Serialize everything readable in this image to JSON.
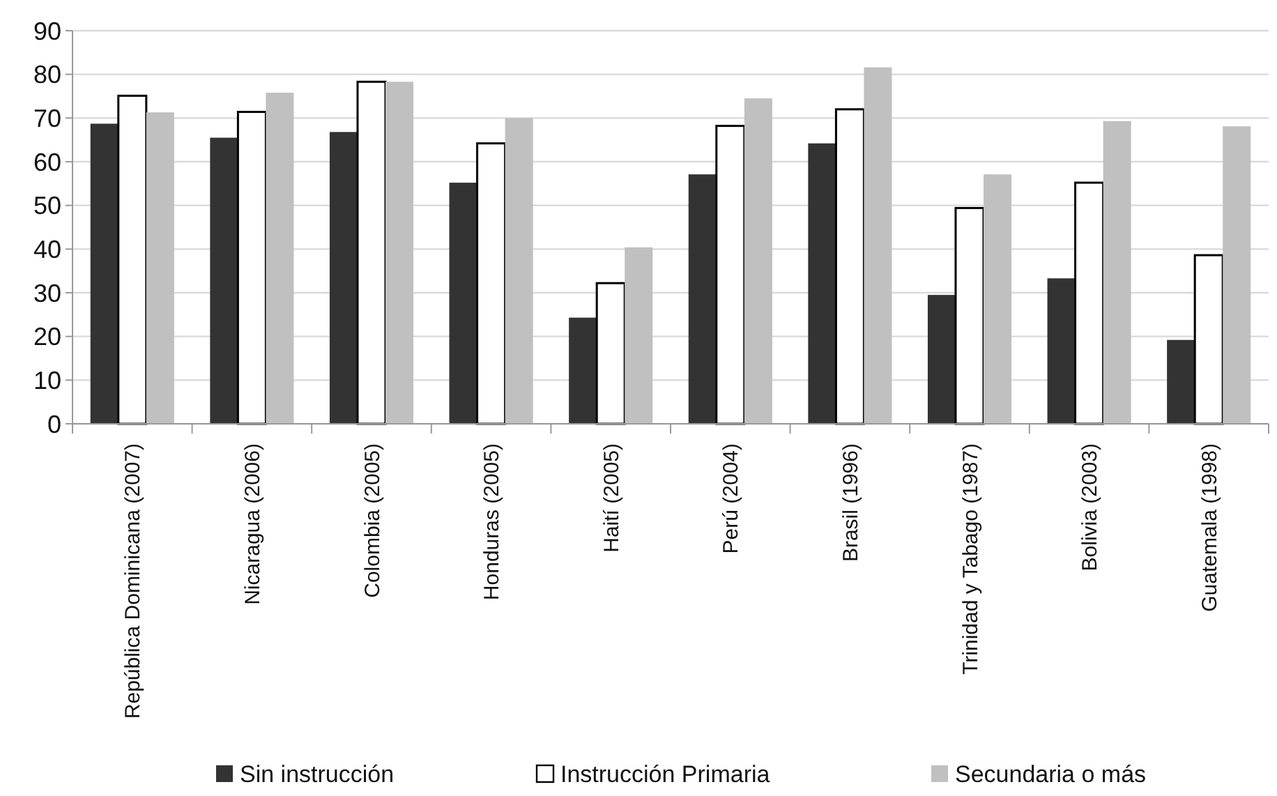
{
  "chart_data": {
    "type": "bar",
    "categories": [
      "República Dominicana (2007)",
      "Nicaragua (2006)",
      "Colombia (2005)",
      "Honduras (2005)",
      "Haití (2005)",
      "Perú (2004)",
      "Brasil (1996)",
      "Trinidad y Tabago (1987)",
      "Bolivia  (2003)",
      "Guatemala (1998)"
    ],
    "series": [
      {
        "name": "Sin instrucción",
        "color": "#333333",
        "values": [
          68.7,
          65.5,
          66.8,
          55.2,
          24.3,
          57.1,
          64.2,
          29.5,
          33.3,
          19.2
        ]
      },
      {
        "name": "Instrucción Primaria",
        "color": "#ffffff",
        "values": [
          75.1,
          71.4,
          78.3,
          64.2,
          32.2,
          68.2,
          72,
          49.4,
          55.2,
          38.6
        ]
      },
      {
        "name": "Secundaria o más",
        "color": "#c0c0c0",
        "values": [
          71.3,
          75.8,
          78.3,
          70,
          40.4,
          74.5,
          81.6,
          57.1,
          69.3,
          68.1
        ]
      }
    ],
    "ylim": [
      0,
      90
    ],
    "yticks": [
      0,
      10,
      20,
      30,
      40,
      50,
      60,
      70,
      80,
      90
    ],
    "grid": "y",
    "legend": "bottom"
  }
}
